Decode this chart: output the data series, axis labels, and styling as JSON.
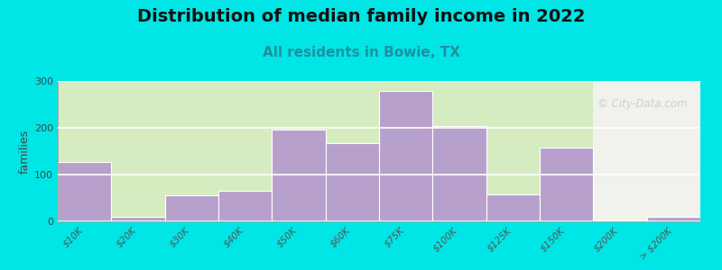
{
  "title": "Distribution of median family income in 2022",
  "subtitle": "All residents in Bowie, TX",
  "ylabel": "families",
  "categories": [
    "$10K",
    "$20K",
    "$30K",
    "$40K",
    "$50K",
    "$60K",
    "$75K",
    "$100K",
    "$125K",
    "$150K",
    "$200K",
    "> $200K"
  ],
  "values": [
    127,
    10,
    55,
    65,
    197,
    168,
    278,
    203,
    57,
    157,
    0,
    10
  ],
  "bar_color": "#b8a0cc",
  "background_outer": "#00e5e5",
  "plot_bg_left": "#d4ecc0",
  "plot_bg_right": "#f2f2ec",
  "green_cutoff_index": 9.5,
  "ylim": [
    0,
    300
  ],
  "yticks": [
    0,
    100,
    200,
    300
  ],
  "title_fontsize": 14,
  "subtitle_fontsize": 11,
  "subtitle_color": "#2090a0",
  "watermark": "© City-Data.com",
  "watermark_color": "#c0c8d8"
}
